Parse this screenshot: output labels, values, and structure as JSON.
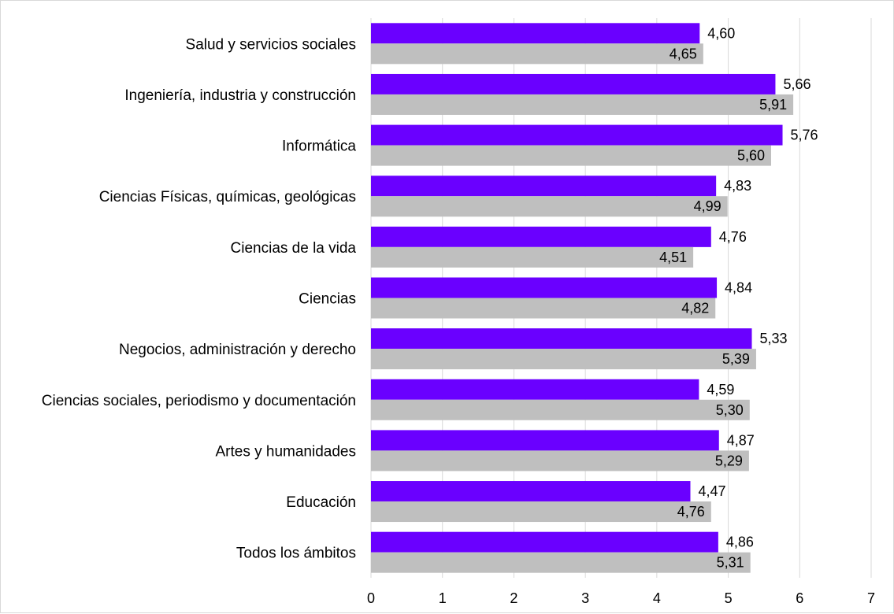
{
  "chart_data": {
    "type": "bar",
    "orientation": "horizontal",
    "categories": [
      "Salud y servicios sociales",
      "Ingeniería, industria y construcción",
      "Informática",
      "Ciencias Físicas, químicas, geológicas",
      "Ciencias de la vida",
      "Ciencias",
      "Negocios, administración y derecho",
      "Ciencias sociales, periodismo y documentación",
      "Artes y humanidades",
      "Educación",
      "Todos los ámbitos"
    ],
    "series": [
      {
        "color": "#6a00ff",
        "values": [
          4.6,
          5.66,
          5.76,
          4.83,
          4.76,
          4.84,
          5.33,
          4.59,
          4.87,
          4.47,
          4.86
        ],
        "labels": [
          "4,60",
          "5,66",
          "5,76",
          "4,83",
          "4,76",
          "4,84",
          "5,33",
          "4,59",
          "4,87",
          "4,47",
          "4,86"
        ]
      },
      {
        "color": "#bfbfbf",
        "values": [
          4.65,
          5.91,
          5.6,
          4.99,
          4.51,
          4.82,
          5.39,
          5.3,
          5.29,
          4.76,
          5.31
        ],
        "labels": [
          "4,65",
          "5,91",
          "5,60",
          "4,99",
          "4,51",
          "4,82",
          "5,39",
          "5,30",
          "5,29",
          "4,76",
          "5,31"
        ]
      }
    ],
    "xlim": [
      0,
      7
    ],
    "xticks": [
      "0",
      "1",
      "2",
      "3",
      "4",
      "5",
      "6",
      "7"
    ],
    "grid": "vertical",
    "legend": "none",
    "title": "",
    "xlabel": "",
    "ylabel": ""
  }
}
